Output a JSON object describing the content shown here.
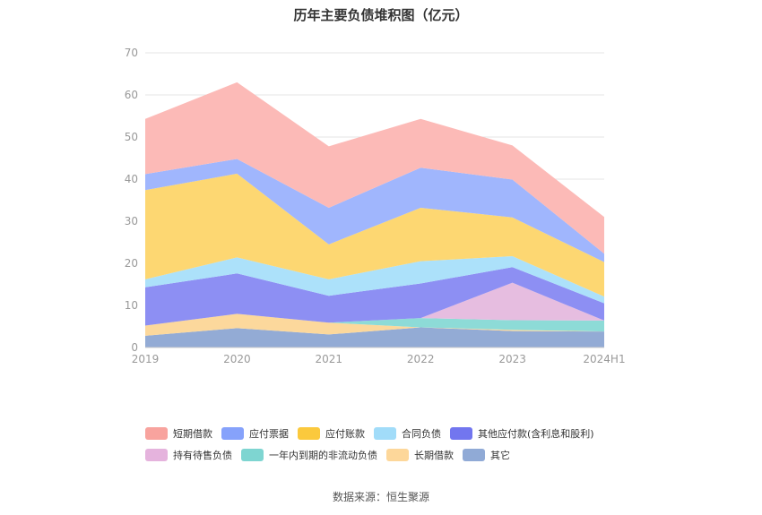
{
  "title": "历年主要负债堆积图（亿元）",
  "source": "数据来源：恒生聚源",
  "chart_data": {
    "type": "area",
    "stacked": true,
    "categories": [
      "2019",
      "2020",
      "2021",
      "2022",
      "2023",
      "2024H1"
    ],
    "ylim": [
      0,
      70
    ],
    "yticks": [
      0,
      10,
      20,
      30,
      40,
      50,
      60,
      70
    ],
    "grid": true,
    "legend_position": "bottom",
    "series": [
      {
        "name": "其它",
        "color": "#93abd5",
        "values": [
          2.8,
          4.6,
          3.1,
          4.8,
          3.9,
          3.8
        ]
      },
      {
        "name": "长期借款",
        "color": "#fcd89c",
        "values": [
          2.4,
          3.4,
          2.8,
          0.0,
          0.3,
          0.0
        ]
      },
      {
        "name": "一年内到期的非流动负债",
        "color": "#8ddbd7",
        "values": [
          0.0,
          0.0,
          0.0,
          2.2,
          2.3,
          2.6
        ]
      },
      {
        "name": "持有待售负债",
        "color": "#e6bde0",
        "values": [
          0.0,
          0.0,
          0.0,
          0.0,
          8.9,
          0.0
        ]
      },
      {
        "name": "其他应付款(含利息和股利)",
        "color": "#8d8ff3",
        "values": [
          9.1,
          9.6,
          6.4,
          8.2,
          3.7,
          4.1
        ]
      },
      {
        "name": "合同负债",
        "color": "#ace1fa",
        "values": [
          1.9,
          3.8,
          3.9,
          5.3,
          2.6,
          1.6
        ]
      },
      {
        "name": "应付账款",
        "color": "#fdd772",
        "values": [
          21.2,
          19.9,
          8.3,
          12.7,
          9.2,
          8.2
        ]
      },
      {
        "name": "应付票据",
        "color": "#a0b6fd",
        "values": [
          3.8,
          3.5,
          8.7,
          9.5,
          9.0,
          2.0
        ]
      },
      {
        "name": "短期借款",
        "color": "#fcbab7",
        "values": [
          13.1,
          18.2,
          14.6,
          11.6,
          8.1,
          8.7
        ]
      }
    ]
  },
  "legend": [
    [
      {
        "name": "短期借款",
        "color": "#f8a39e"
      },
      {
        "name": "应付票据",
        "color": "#86a2fb"
      },
      {
        "name": "应付账款",
        "color": "#fbc93d"
      },
      {
        "name": "合同负债",
        "color": "#a1dcf9"
      },
      {
        "name": "其他应付款(含利息和股利)",
        "color": "#7276ef"
      }
    ],
    [
      {
        "name": "持有待售负债",
        "color": "#e5b3dd"
      },
      {
        "name": "一年内到期的非流动负债",
        "color": "#7ed5d1"
      },
      {
        "name": "长期借款",
        "color": "#fdd79a"
      },
      {
        "name": "其它",
        "color": "#90aad6"
      }
    ]
  ]
}
